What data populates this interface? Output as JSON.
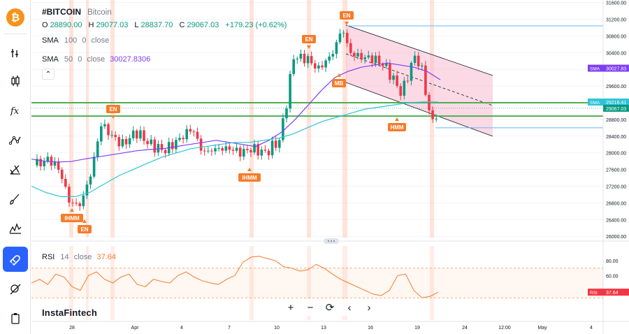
{
  "header": {
    "symbol": "#BITCOIN",
    "name": "Bitcoin",
    "ohlc": {
      "o_key": "O",
      "o": "28890.00",
      "h_key": "H",
      "h": "29077.03",
      "l_key": "L",
      "l": "28837.70",
      "c_key": "C",
      "c": "29067.03",
      "chg": "+179.23 (+0.62%)"
    }
  },
  "indicators": {
    "sma100": {
      "name": "SMA",
      "params": [
        "100",
        "0",
        "close"
      ]
    },
    "sma50": {
      "name": "SMA",
      "params": [
        "50",
        "0",
        "close"
      ],
      "value": "30027.8306"
    },
    "rsi": {
      "name": "RSI",
      "params": [
        "14",
        "close"
      ],
      "value": "37.64"
    }
  },
  "watermark": "InstaFintech",
  "zoom_controls": [
    "+",
    "−",
    "⟳",
    "‹",
    "›"
  ],
  "colors": {
    "up": "#089981",
    "down": "#f23645",
    "sma50": "#7e3ff2",
    "sma100": "#2ec4d6",
    "rsi": "#f57c2a",
    "support_line": "#4caf50",
    "channel_fill": "#f8bbd0",
    "accent": "#2962ff",
    "signal_bands": "#ffccbc",
    "level_line": "#64b5f6"
  },
  "toolbar": {
    "items": [
      "bitcoin-logo",
      "chart-type-icon",
      "candles-icon",
      "fx-indicators-icon",
      "drawing-tools-icon",
      "fib-icon",
      "brush-icon",
      "patterns-icon",
      "magnet-icon",
      "hide-drawings-icon",
      "clipboard-icon"
    ],
    "active": "magnet-icon"
  },
  "chart_data": [
    {
      "type": "candlestick",
      "title": "#BITCOIN",
      "price_axis": {
        "ticks": [
          "31600.00",
          "31200.00",
          "30800.00",
          "30400.00",
          "30000.00",
          "29600.00",
          "29200.00",
          "28800.00",
          "28400.00",
          "28000.00",
          "27600.00",
          "27200.00",
          "26800.00",
          "26400.00",
          "26000.00"
        ],
        "ylim": [
          25970,
          31660
        ]
      },
      "time_axis": {
        "ticks": [
          "28",
          "Apr",
          "4",
          "7",
          "10",
          "13",
          "16",
          "19",
          "24",
          "12:00",
          "May",
          "4"
        ]
      },
      "price_labels": [
        {
          "label": "SMA",
          "value": "30027.83",
          "color": "#7e3ff2"
        },
        {
          "label": "SMA",
          "value": "29216.41",
          "color": "#2ec4d6"
        },
        {
          "label": "",
          "value": "29067.03",
          "color": "#089981"
        }
      ],
      "horizontal_levels": [
        {
          "value": 29200,
          "color": "#4caf50"
        },
        {
          "value": 28880,
          "color": "#4caf50"
        },
        {
          "value": 31040,
          "color": "#64b5f6"
        },
        {
          "value": 28600,
          "color": "#64b5f6"
        }
      ],
      "pattern_labels": [
        "IHMM",
        "EN",
        "EN",
        "IHMM",
        "EN",
        "EN",
        "MB",
        "HMM"
      ],
      "sma50": [
        27850,
        27800,
        27780,
        27790,
        27850,
        27900,
        27950,
        28000,
        28050,
        28080,
        28100,
        28150,
        28200,
        28250,
        28300,
        28250,
        28200,
        28150,
        28300,
        28500,
        28800,
        29150,
        29500,
        29800,
        29950,
        30050,
        30100,
        30150,
        30100,
        30050,
        29950,
        29750
      ],
      "sma100": [
        27200,
        27050,
        26950,
        26950,
        27050,
        27250,
        27450,
        27600,
        27750,
        27900,
        28000,
        28100,
        28150,
        28200,
        28250,
        28250,
        28300,
        28350,
        28450,
        28600,
        28750,
        28850,
        28950,
        29050,
        29100,
        29150,
        29200,
        29220,
        29216
      ]
    },
    {
      "type": "line",
      "title": "RSI 14 close",
      "y_ticks": [
        "80.00",
        "60.00"
      ],
      "levels": [
        70,
        30
      ],
      "ylim": [
        0,
        100
      ],
      "series": [
        {
          "name": "RSI",
          "values": [
            50,
            55,
            48,
            62,
            58,
            45,
            40,
            60,
            65,
            55,
            50,
            58,
            62,
            48,
            45,
            55,
            52,
            50,
            60,
            65,
            58,
            53,
            50,
            48,
            55,
            60,
            78,
            85,
            86,
            83,
            80,
            72,
            70,
            66,
            68,
            75,
            70,
            62,
            55,
            50,
            45,
            40,
            35,
            33,
            40,
            60,
            62,
            40,
            30,
            32,
            37.64
          ]
        }
      ],
      "value_label": {
        "label": "RSI",
        "value": "37.64"
      }
    }
  ]
}
